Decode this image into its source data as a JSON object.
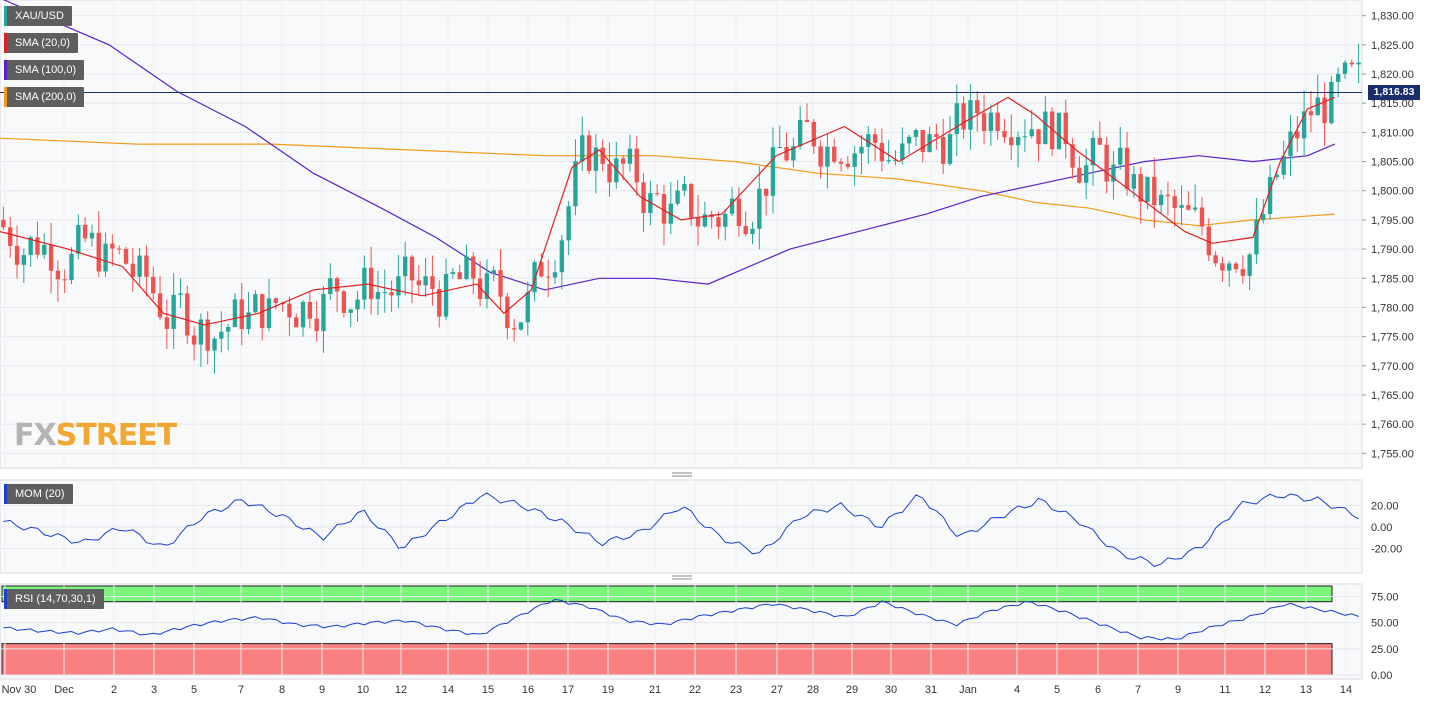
{
  "symbol": "XAU/USD",
  "price_label": "1,816.83",
  "watermark": {
    "fx": "FX",
    "street": "STREET"
  },
  "legends": [
    {
      "label": "XAU/USD",
      "color": "#26a69a"
    },
    {
      "label": "SMA (20,0)",
      "color": "#e02020"
    },
    {
      "label": "SMA (100,0)",
      "color": "#5a21c8"
    },
    {
      "label": "SMA (200,0)",
      "color": "#f59a1a"
    }
  ],
  "mom_legend": {
    "label": "MOM (20)",
    "color": "#1b3fd1"
  },
  "rsi_legend": {
    "label": "RSI (14,70,30,1)",
    "color": "#1b3fd1"
  },
  "colors": {
    "up": "#26a69a",
    "down": "#ef5350",
    "sma20": "#e02020",
    "sma100": "#5a21c8",
    "sma200": "#f59a1a",
    "mom": "#1b3fd1",
    "rsi": "#1b3fd1",
    "overbought_zone": "#7bf57b",
    "oversold_zone": "#f98080",
    "price_line": "#1a2e6c"
  },
  "chart_data": [
    {
      "type": "candlestick",
      "title": "XAU/USD",
      "ylim": [
        1753,
        1832
      ],
      "yticks": [
        "1,830.00",
        "1,825.00",
        "1,820.00",
        "1,815.00",
        "1,810.00",
        "1,805.00",
        "1,800.00",
        "1,795.00",
        "1,790.00",
        "1,785.00",
        "1,780.00",
        "1,775.00",
        "1,770.00",
        "1,765.00",
        "1,760.00",
        "1,755.00"
      ],
      "x_labels": [
        "Nov 30",
        "Dec",
        "2",
        "3",
        "5",
        "7",
        "8",
        "9",
        "10",
        "12",
        "14",
        "15",
        "16",
        "17",
        "19",
        "21",
        "22",
        "23",
        "27",
        "28",
        "29",
        "30",
        "31",
        "Jan",
        "4",
        "5",
        "6",
        "7",
        "9",
        "11",
        "12",
        "13",
        "14"
      ],
      "last_price": 1816.83,
      "series": [
        {
          "name": "SMA (20,0)",
          "points": [
            [
              0,
              1793
            ],
            [
              0.05,
              1790
            ],
            [
              0.09,
              1787
            ],
            [
              0.12,
              1779
            ],
            [
              0.15,
              1777
            ],
            [
              0.19,
              1779
            ],
            [
              0.23,
              1783
            ],
            [
              0.27,
              1784
            ],
            [
              0.31,
              1782
            ],
            [
              0.35,
              1784
            ],
            [
              0.37,
              1779
            ],
            [
              0.39,
              1783
            ],
            [
              0.42,
              1804
            ],
            [
              0.44,
              1807
            ],
            [
              0.47,
              1799
            ],
            [
              0.5,
              1795
            ],
            [
              0.53,
              1796
            ],
            [
              0.57,
              1806
            ],
            [
              0.62,
              1811
            ],
            [
              0.66,
              1805
            ],
            [
              0.71,
              1812
            ],
            [
              0.74,
              1816
            ],
            [
              0.76,
              1813
            ],
            [
              0.79,
              1807
            ],
            [
              0.83,
              1800
            ],
            [
              0.87,
              1793
            ],
            [
              0.89,
              1791
            ],
            [
              0.92,
              1792
            ],
            [
              0.94,
              1805
            ],
            [
              0.96,
              1814
            ],
            [
              0.98,
              1816
            ]
          ]
        },
        {
          "name": "SMA (100,0)",
          "points": [
            [
              0,
              1833
            ],
            [
              0.03,
              1830
            ],
            [
              0.08,
              1825
            ],
            [
              0.13,
              1817
            ],
            [
              0.18,
              1811
            ],
            [
              0.23,
              1803
            ],
            [
              0.28,
              1797
            ],
            [
              0.32,
              1792
            ],
            [
              0.36,
              1786
            ],
            [
              0.4,
              1783
            ],
            [
              0.44,
              1785
            ],
            [
              0.48,
              1785
            ],
            [
              0.52,
              1784
            ],
            [
              0.58,
              1790
            ],
            [
              0.63,
              1793
            ],
            [
              0.68,
              1796
            ],
            [
              0.72,
              1799
            ],
            [
              0.76,
              1801
            ],
            [
              0.8,
              1803
            ],
            [
              0.84,
              1805
            ],
            [
              0.88,
              1806
            ],
            [
              0.92,
              1805
            ],
            [
              0.96,
              1806
            ],
            [
              0.98,
              1808
            ]
          ]
        },
        {
          "name": "SMA (200,0)",
          "points": [
            [
              0,
              1809
            ],
            [
              0.1,
              1808
            ],
            [
              0.2,
              1808
            ],
            [
              0.3,
              1807
            ],
            [
              0.4,
              1806
            ],
            [
              0.48,
              1806
            ],
            [
              0.54,
              1805
            ],
            [
              0.6,
              1803
            ],
            [
              0.66,
              1802
            ],
            [
              0.72,
              1800
            ],
            [
              0.76,
              1798
            ],
            [
              0.8,
              1797
            ],
            [
              0.84,
              1795
            ],
            [
              0.88,
              1794
            ],
            [
              0.92,
              1795
            ],
            [
              0.98,
              1796
            ]
          ]
        }
      ]
    },
    {
      "type": "line",
      "title": "MOM (20)",
      "ylim": [
        -40,
        40
      ],
      "yticks": [
        "20.00",
        "0.00",
        "-20.00"
      ],
      "series": [
        {
          "name": "MOM (20)",
          "shape": "oscillating",
          "values": [
            5,
            -5,
            -15,
            0,
            -20,
            10,
            25,
            10,
            -10,
            15,
            -20,
            5,
            30,
            20,
            5,
            -15,
            -5,
            20,
            -10,
            -25,
            10,
            20,
            0,
            30,
            -10,
            10,
            25,
            5,
            -25,
            -35,
            -20,
            20,
            30,
            25,
            10
          ]
        }
      ]
    },
    {
      "type": "line",
      "title": "RSI (14,70,30,1)",
      "ylim": [
        0,
        85
      ],
      "yticks": [
        "75.00",
        "50.00",
        "25.00",
        "0.00"
      ],
      "overbought": 70,
      "oversold": 30,
      "series": [
        {
          "name": "RSI (14,70,30,1)",
          "values": [
            45,
            42,
            40,
            44,
            38,
            46,
            52,
            55,
            48,
            46,
            50,
            52,
            44,
            38,
            55,
            72,
            65,
            52,
            48,
            56,
            62,
            68,
            62,
            55,
            70,
            58,
            48,
            62,
            70,
            60,
            48,
            36,
            34,
            46,
            55,
            68,
            62,
            56
          ]
        }
      ]
    }
  ]
}
